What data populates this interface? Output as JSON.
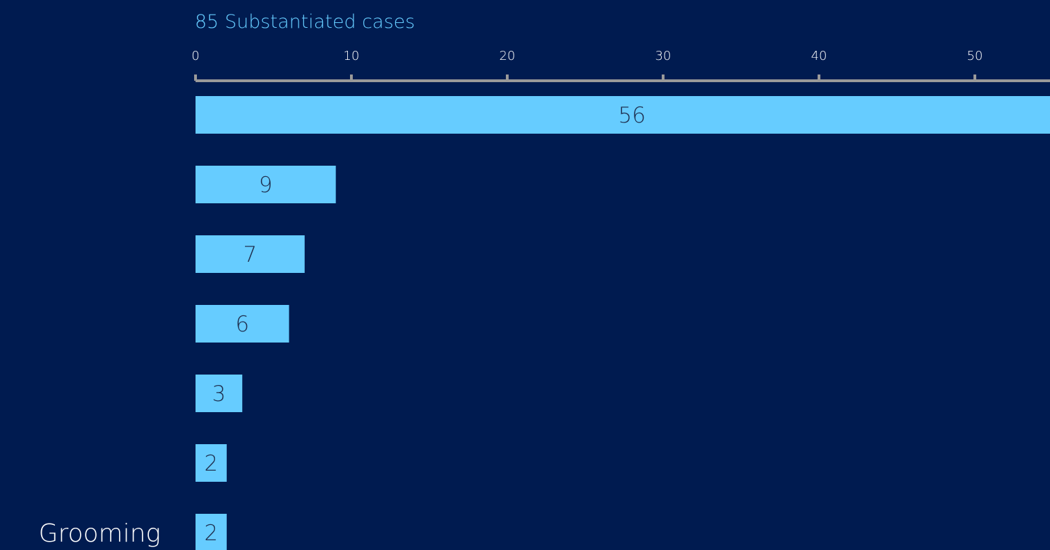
{
  "colors": {
    "background": "#001b50",
    "bar": "#66ccff",
    "axis": "#9a9a9a",
    "title": "#66ccff",
    "tick_text": "#ffffff",
    "data_label_text": "#1f3050"
  },
  "chart_data": {
    "type": "bar",
    "orientation": "horizontal",
    "title": "85 Substantiated cases",
    "categories": [
      "",
      "",
      "",
      "",
      "",
      "",
      "Grooming"
    ],
    "values": [
      56,
      9,
      7,
      6,
      3,
      2,
      2
    ],
    "data_labels": [
      "56",
      "9",
      "7",
      "6",
      "3",
      "2",
      "2"
    ],
    "xticks": [
      0,
      10,
      20,
      30,
      40,
      50
    ],
    "tick_labels": [
      "0",
      "10",
      "20",
      "30",
      "40",
      "50"
    ],
    "xlim": [
      0,
      55
    ],
    "axis_position": "top",
    "grid": false,
    "legend": "none"
  }
}
